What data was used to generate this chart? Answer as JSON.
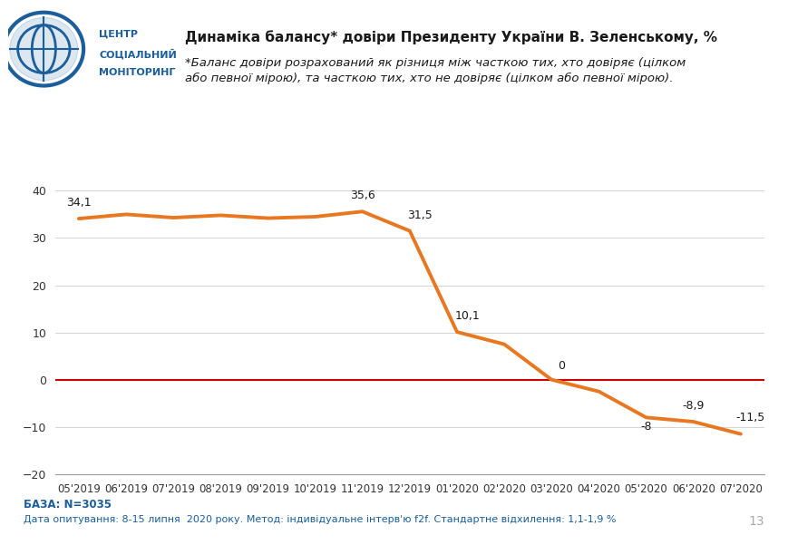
{
  "title_line1": "Динаміка балансу* довіри Президенту України В. Зеленському, %",
  "title_line2": "*Баланс довіри розрахований як різниця між часткою тих, хто довіряє (цілком\nабо певної мірою), та часткою тих, хто не довіряє (цілком або певної мірою).",
  "x_labels": [
    "05'2019",
    "06'2019",
    "07'2019",
    "08'2019",
    "09'2019",
    "10'2019",
    "11'2019",
    "12'2019",
    "01'2020",
    "02'2020",
    "03'2020",
    "04'2020",
    "05'2020",
    "06'2020",
    "07'2020"
  ],
  "y_values": [
    34.1,
    35.0,
    34.3,
    34.8,
    34.2,
    34.5,
    35.6,
    31.5,
    10.1,
    7.5,
    0.0,
    -2.5,
    -8.0,
    -8.9,
    -11.5
  ],
  "labeled_points": {
    "0": "34,1",
    "6": "35,6",
    "7": "31,5",
    "8": "10,1",
    "10": "0",
    "12": "-8",
    "13": "-8,9",
    "14": "-11,5"
  },
  "line_color": "#E87722",
  "zero_line_color": "#CC0000",
  "ylim": [
    -20,
    40
  ],
  "yticks": [
    -20,
    -10,
    0,
    10,
    20,
    30,
    40
  ],
  "background_color": "#FFFFFF",
  "footer_line1": "БАЗА: N=3035",
  "footer_line2": "Дата опитування: 8-15 липня  2020 року. Метод: індивідуальне інтерв'ю f2f. Стандартне відхилення: 1,1-1,9 %",
  "page_number": "13",
  "logo_circle_color": "#1B5E9B",
  "header_box_color": "#1B5E9B"
}
